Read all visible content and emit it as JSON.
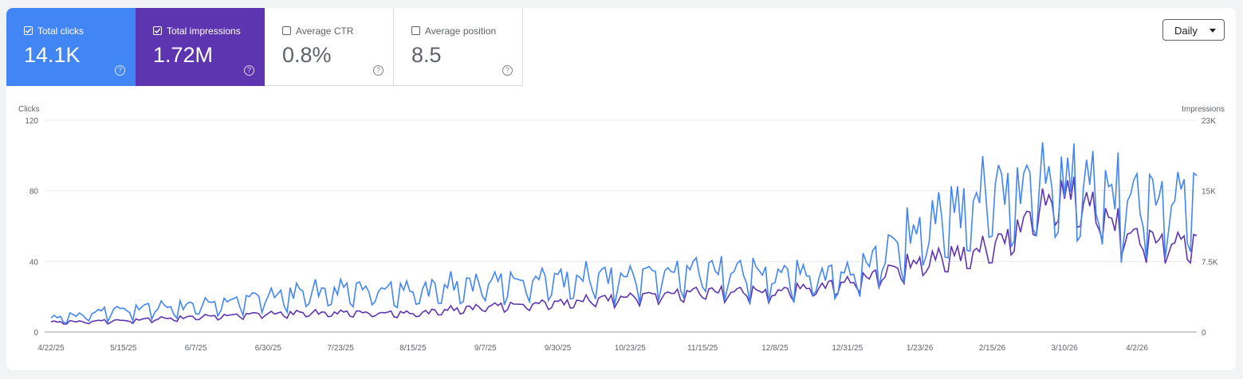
{
  "metrics": [
    {
      "label": "Total clicks",
      "value": "14.1K",
      "checked": true
    },
    {
      "label": "Total impressions",
      "value": "1.72M",
      "checked": true
    },
    {
      "label": "Average CTR",
      "value": "0.8%",
      "checked": false
    },
    {
      "label": "Average position",
      "value": "8.5",
      "checked": false
    }
  ],
  "granularity": {
    "label": "Daily"
  },
  "colors": {
    "clicks": "#4285f4",
    "impressions": "#5e35b1"
  },
  "chart_data": {
    "type": "line",
    "ylabel": "Clicks",
    "y2label": "Impressions",
    "ylim": [
      0,
      120
    ],
    "y2lim": [
      0,
      23000
    ],
    "y_ticks": [
      "0",
      "40",
      "80",
      "120"
    ],
    "y2_ticks": [
      "0",
      "7.5K",
      "15K",
      "23K"
    ],
    "x_range": [
      "4/22/25",
      "4/21/26"
    ],
    "x_ticks": [
      "4/22/25",
      "5/15/25",
      "6/7/25",
      "6/30/25",
      "7/23/25",
      "8/15/25",
      "9/7/25",
      "9/30/25",
      "10/23/25",
      "11/15/25",
      "12/8/25",
      "12/31/25",
      "1/23/26",
      "2/15/26",
      "3/10/26",
      "4/2/26"
    ],
    "grid": true,
    "series": [
      {
        "name": "Clicks",
        "axis": "left",
        "points": [
          [
            "4/22/25",
            8
          ],
          [
            "5/15/25",
            14
          ],
          [
            "6/7/25",
            16
          ],
          [
            "6/30/25",
            22
          ],
          [
            "7/23/25",
            26
          ],
          [
            "8/15/25",
            25
          ],
          [
            "9/7/25",
            30
          ],
          [
            "9/30/25",
            32
          ],
          [
            "10/23/25",
            34
          ],
          [
            "11/15/25",
            38
          ],
          [
            "12/8/25",
            35
          ],
          [
            "12/31/25",
            34
          ],
          [
            "1/23/26",
            62
          ],
          [
            "2/15/26",
            85
          ],
          [
            "3/10/26",
            92
          ],
          [
            "4/2/26",
            80
          ],
          [
            "4/21/26",
            82
          ]
        ]
      },
      {
        "name": "Impressions",
        "axis": "right",
        "points": [
          [
            "4/22/25",
            1100
          ],
          [
            "5/15/25",
            1300
          ],
          [
            "6/7/25",
            1700
          ],
          [
            "6/30/25",
            2100
          ],
          [
            "7/23/25",
            2200
          ],
          [
            "8/15/25",
            2100
          ],
          [
            "9/7/25",
            2900
          ],
          [
            "9/30/25",
            3300
          ],
          [
            "10/23/25",
            4000
          ],
          [
            "11/15/25",
            4600
          ],
          [
            "12/8/25",
            4500
          ],
          [
            "12/31/25",
            5500
          ],
          [
            "1/23/26",
            7900
          ],
          [
            "2/15/26",
            9500
          ],
          [
            "3/10/26",
            16000
          ],
          [
            "4/2/26",
            10500
          ],
          [
            "4/21/26",
            10000
          ]
        ]
      }
    ]
  }
}
